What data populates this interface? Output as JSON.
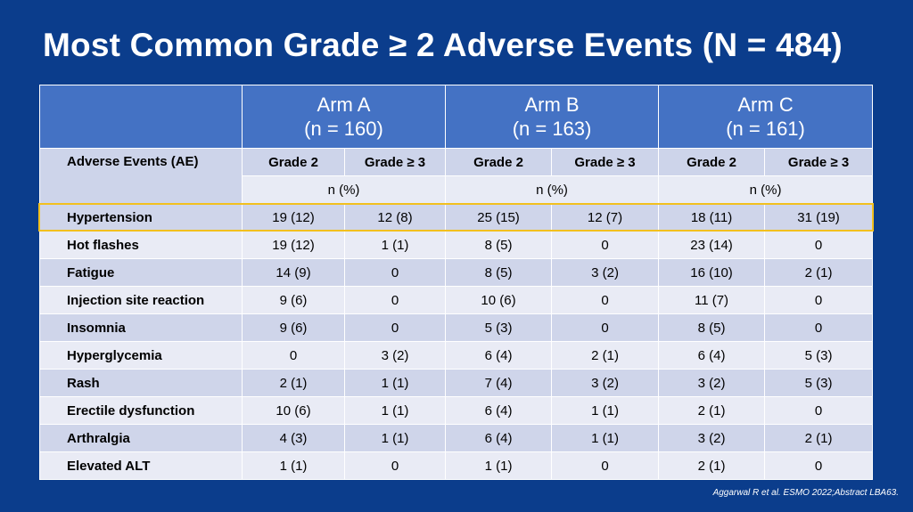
{
  "title": "Most Common Grade ≥ 2 Adverse Events (N = 484)",
  "arms": [
    {
      "name": "Arm A",
      "n": "(n = 160)"
    },
    {
      "name": "Arm B",
      "n": "(n = 163)"
    },
    {
      "name": "Arm C",
      "n": "(n = 161)"
    }
  ],
  "ae_header": "Adverse Events (AE)",
  "grade_labels": [
    "Grade 2",
    "Grade ≥ 3"
  ],
  "npct_label": "n (%)",
  "rows": [
    {
      "ae": "Hypertension",
      "values": [
        "19 (12)",
        "12 (8)",
        "25 (15)",
        "12 (7)",
        "18 (11)",
        "31 (19)"
      ]
    },
    {
      "ae": "Hot flashes",
      "values": [
        "19 (12)",
        "1 (1)",
        "8 (5)",
        "0",
        "23 (14)",
        "0"
      ]
    },
    {
      "ae": "Fatigue",
      "values": [
        "14 (9)",
        "0",
        "8 (5)",
        "3 (2)",
        "16 (10)",
        "2 (1)"
      ]
    },
    {
      "ae": "Injection site reaction",
      "values": [
        "9 (6)",
        "0",
        "10 (6)",
        "0",
        "11 (7)",
        "0"
      ]
    },
    {
      "ae": "Insomnia",
      "values": [
        "9 (6)",
        "0",
        "5 (3)",
        "0",
        "8 (5)",
        "0"
      ]
    },
    {
      "ae": "Hyperglycemia",
      "values": [
        "0",
        "3 (2)",
        "6 (4)",
        "2 (1)",
        "6 (4)",
        "5 (3)"
      ]
    },
    {
      "ae": "Rash",
      "values": [
        "2 (1)",
        "1 (1)",
        "7 (4)",
        "3 (2)",
        "3 (2)",
        "5 (3)"
      ]
    },
    {
      "ae": "Erectile dysfunction",
      "values": [
        "10 (6)",
        "1 (1)",
        "6 (4)",
        "1 (1)",
        "2 (1)",
        "0"
      ]
    },
    {
      "ae": "Arthralgia",
      "values": [
        "4 (3)",
        "1 (1)",
        "6 (4)",
        "1 (1)",
        "3 (2)",
        "2 (1)"
      ]
    },
    {
      "ae": "Elevated ALT",
      "values": [
        "1 (1)",
        "0",
        "1 (1)",
        "0",
        "2 (1)",
        "0"
      ]
    }
  ],
  "citation": "Aggarwal R et al. ESMO 2022;Abstract LBA63.",
  "colors": {
    "background": "#0b3d8c",
    "header": "#4472c4",
    "highlight": "#f2c01e"
  }
}
